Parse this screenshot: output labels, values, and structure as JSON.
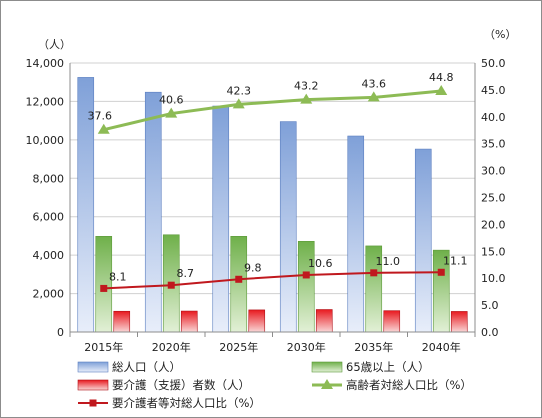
{
  "chart_data": {
    "type": "bar",
    "categories": [
      "2015年",
      "2020年",
      "2025年",
      "2030年",
      "2035年",
      "2040年"
    ],
    "left_axis": {
      "unit": "（人）",
      "min": 0,
      "max": 14000,
      "step": 2000,
      "ticks": [
        "0",
        "2,000",
        "4,000",
        "6,000",
        "8,000",
        "10,000",
        "12,000",
        "14,000"
      ]
    },
    "right_axis": {
      "unit": "（%）",
      "min": 0,
      "max": 50,
      "step": 5,
      "ticks": [
        "0.0",
        "5.0",
        "10.0",
        "15.0",
        "20.0",
        "25.0",
        "30.0",
        "35.0",
        "40.0",
        "45.0",
        "50.0"
      ]
    },
    "series": [
      {
        "name": "総人口（人）",
        "type": "bar",
        "axis": "left",
        "values": [
          13250,
          12480,
          11760,
          10950,
          10200,
          9520
        ],
        "color": "#9bb7e3"
      },
      {
        "name": "65歳以上（人）",
        "type": "bar",
        "axis": "left",
        "values": [
          4980,
          5060,
          4980,
          4720,
          4480,
          4260
        ],
        "color": "#8fc46a"
      },
      {
        "name": "要介護（支援）者数（人）",
        "type": "bar",
        "axis": "left",
        "values": [
          1080,
          1090,
          1150,
          1170,
          1110,
          1070
        ],
        "color": "#e0242a"
      },
      {
        "name": "高齢者対総人口比（%）",
        "type": "line",
        "axis": "right",
        "values": [
          37.6,
          40.6,
          42.3,
          43.2,
          43.6,
          44.8
        ],
        "labels": [
          "37.6",
          "40.6",
          "42.3",
          "43.2",
          "43.6",
          "44.8"
        ],
        "color": "#8dbb55"
      },
      {
        "name": "要介護者等対総人口比（%）",
        "type": "line",
        "axis": "right",
        "values": [
          8.1,
          8.7,
          9.8,
          10.6,
          11.0,
          11.1
        ],
        "labels": [
          "8.1",
          "8.7",
          "9.8",
          "10.6",
          "11.0",
          "11.1"
        ],
        "color": "#c0181e"
      }
    ],
    "grid": true,
    "legend_position": "bottom"
  }
}
